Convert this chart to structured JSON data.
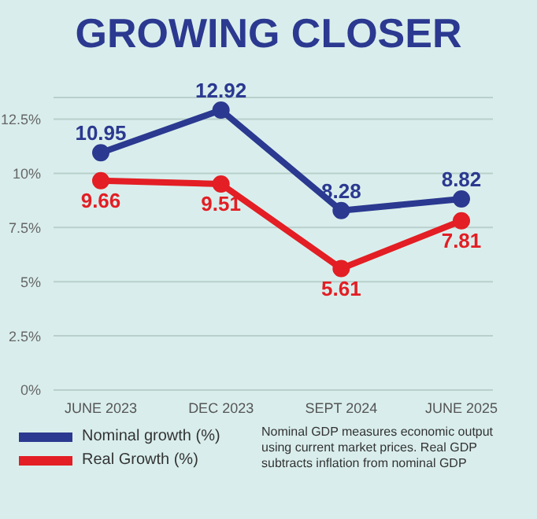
{
  "chart_data": {
    "type": "line",
    "title": "GROWING CLOSER",
    "categories": [
      "JUNE 2023",
      "DEC 2023",
      "SEPT 2024",
      "JUNE 2025"
    ],
    "series": [
      {
        "name": "Nominal growth (%)",
        "color": "#2b3990",
        "values": [
          10.95,
          12.92,
          8.28,
          8.82
        ]
      },
      {
        "name": "Real Growth (%)",
        "color": "#e31e24",
        "values": [
          9.66,
          9.51,
          5.61,
          7.81
        ]
      }
    ],
    "ylim": [
      0,
      13.5
    ],
    "yticks": [
      {
        "value": 0,
        "label": "0%"
      },
      {
        "value": 2.5,
        "label": "2.5%"
      },
      {
        "value": 5,
        "label": "5%"
      },
      {
        "value": 7.5,
        "label": "7.5%"
      },
      {
        "value": 10,
        "label": "10%"
      },
      {
        "value": 12.5,
        "label": "12.5%"
      }
    ],
    "grid": "y",
    "legend": "bottom left",
    "marker": "circle",
    "line_style": "solid",
    "data_labels": true,
    "annotations": [
      "Nominal GDP measures economic output using current market prices. Real GDP subtracts inflation from nominal GDP"
    ]
  }
}
